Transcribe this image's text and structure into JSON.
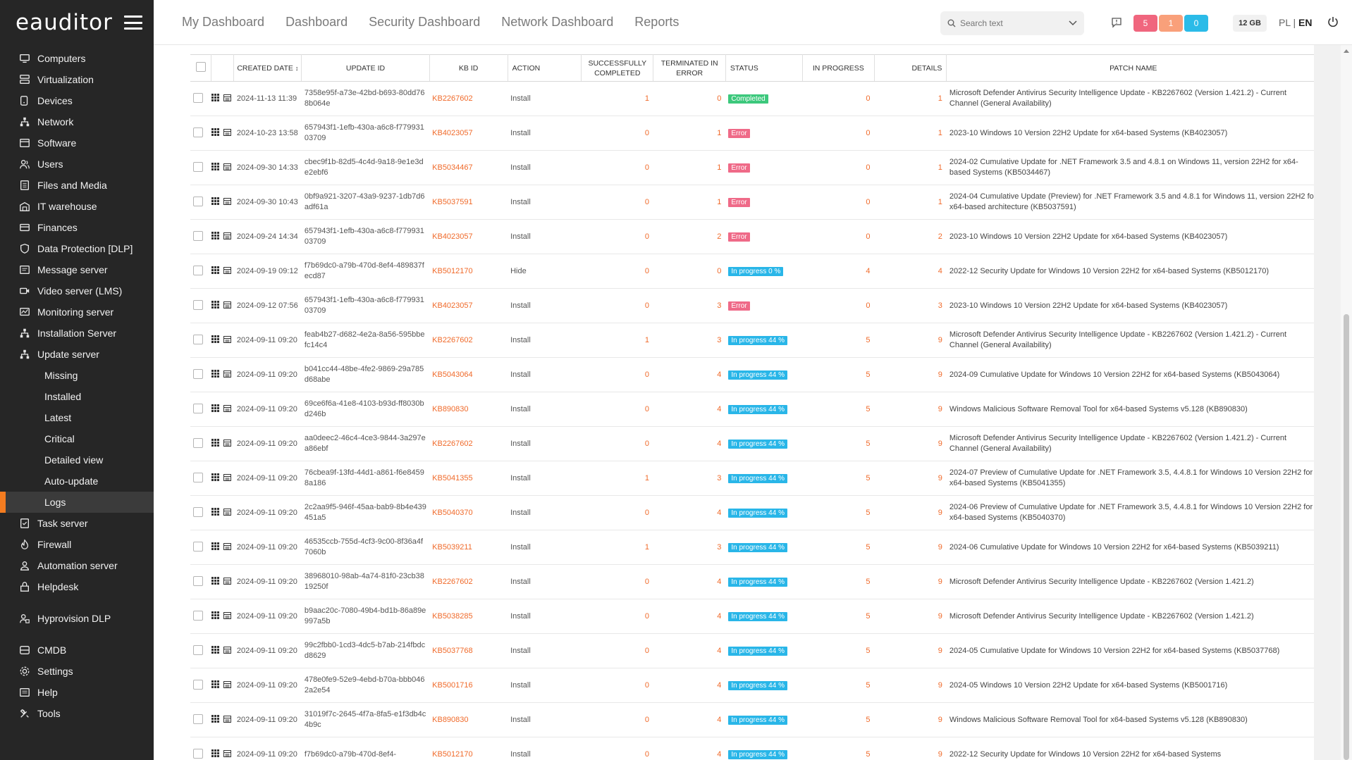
{
  "app": {
    "logo": "eauditor"
  },
  "sidebar": {
    "items": [
      {
        "label": "Computers",
        "icon": "computer-icon"
      },
      {
        "label": "Virtualization",
        "icon": "server-icon"
      },
      {
        "label": "Devices",
        "icon": "devices-icon"
      },
      {
        "label": "Network",
        "icon": "network-icon"
      },
      {
        "label": "Software",
        "icon": "software-icon"
      },
      {
        "label": "Users",
        "icon": "users-icon"
      },
      {
        "label": "Files and Media",
        "icon": "files-icon"
      },
      {
        "label": "IT warehouse",
        "icon": "warehouse-icon"
      },
      {
        "label": "Finances",
        "icon": "finances-icon"
      },
      {
        "label": "Data Protection [DLP]",
        "icon": "shield-icon"
      },
      {
        "label": "Message server",
        "icon": "message-icon"
      },
      {
        "label": "Video server (LMS)",
        "icon": "video-icon"
      },
      {
        "label": "Monitoring server",
        "icon": "monitoring-icon"
      },
      {
        "label": "Installation Server",
        "icon": "installation-icon"
      },
      {
        "label": "Update server",
        "icon": "update-icon"
      }
    ],
    "update_sub": [
      "Missing",
      "Installed",
      "Latest",
      "Critical",
      "Detailed view",
      "Auto-update",
      "Logs"
    ],
    "items_after": [
      {
        "label": "Task server",
        "icon": "task-icon"
      },
      {
        "label": "Firewall",
        "icon": "firewall-icon"
      },
      {
        "label": "Automation server",
        "icon": "automation-icon"
      },
      {
        "label": "Helpdesk",
        "icon": "helpdesk-icon"
      }
    ],
    "hyprovision": {
      "label": "Hyprovision DLP",
      "icon": "hyprovision-icon"
    },
    "bottom": [
      {
        "label": "CMDB",
        "icon": "database-icon"
      },
      {
        "label": "Settings",
        "icon": "gear-icon"
      },
      {
        "label": "Help",
        "icon": "help-icon"
      },
      {
        "label": "Tools",
        "icon": "tools-icon"
      }
    ]
  },
  "topbar": {
    "tabs": [
      "My Dashboard",
      "Dashboard",
      "Security Dashboard",
      "Network Dashboard",
      "Reports"
    ],
    "search_placeholder": "Search text",
    "badges": [
      {
        "value": "5",
        "color": "#f0667e"
      },
      {
        "value": "1",
        "color": "#f9a07a"
      },
      {
        "value": "0",
        "color": "#2bbbe8"
      }
    ],
    "memory": "12 GB",
    "lang_pl": "PL",
    "lang_sep": " | ",
    "lang_en": "EN"
  },
  "table": {
    "headers": {
      "created": "CREATED DATE",
      "update_id": "UPDATE ID",
      "kb_id": "KB ID",
      "action": "ACTION",
      "success": "SUCCESSFULLY COMPLETED",
      "terminated": "TERMINATED IN ERROR",
      "status": "STATUS",
      "in_progress": "IN PROGRESS",
      "details": "DETAILS",
      "patch": "PATCH NAME"
    },
    "rows": [
      {
        "date": "2024-11-13 11:39",
        "uid": "7358e95f-a73e-42bd-b693-80dd768b064e",
        "kb": "KB2267602",
        "action": "Install",
        "ok": "1",
        "err": "0",
        "status": "Completed",
        "stype": "completed",
        "prog": "0",
        "details": "1",
        "patch": "Microsoft Defender Antivirus Security Intelligence Update - KB2267602 (Version 1.421.2) - Current Channel (General Availability)"
      },
      {
        "date": "2024-10-23 13:58",
        "uid": "657943f1-1efb-430a-a6c8-f77993103709",
        "kb": "KB4023057",
        "action": "Install",
        "ok": "0",
        "err": "1",
        "status": "Error",
        "stype": "error",
        "prog": "0",
        "details": "1",
        "patch": "2023-10 Windows 10 Version 22H2 Update for x64-based Systems (KB4023057)"
      },
      {
        "date": "2024-09-30 14:33",
        "uid": "cbec9f1b-82d5-4c4d-9a18-9e1e3de2ebf6",
        "kb": "KB5034467",
        "action": "Install",
        "ok": "0",
        "err": "1",
        "status": "Error",
        "stype": "error",
        "prog": "0",
        "details": "1",
        "patch": "2024-02 Cumulative Update for .NET Framework 3.5 and 4.8.1 on Windows 11, version 22H2 for x64-based Systems (KB5034467)"
      },
      {
        "date": "2024-09-30 10:43",
        "uid": "0bf9a921-3207-43a9-9237-1db7d6adf61a",
        "kb": "KB5037591",
        "action": "Install",
        "ok": "0",
        "err": "1",
        "status": "Error",
        "stype": "error",
        "prog": "0",
        "details": "1",
        "patch": "2024-04 Cumulative Update (Preview) for .NET Framework 3.5 and 4.8.1 for Windows 11, version 22H2 for x64-based architecture (KB5037591)"
      },
      {
        "date": "2024-09-24 14:34",
        "uid": "657943f1-1efb-430a-a6c8-f77993103709",
        "kb": "KB4023057",
        "action": "Install",
        "ok": "0",
        "err": "2",
        "status": "Error",
        "stype": "error",
        "prog": "0",
        "details": "2",
        "patch": "2023-10 Windows 10 Version 22H2 Update for x64-based Systems (KB4023057)"
      },
      {
        "date": "2024-09-19 09:12",
        "uid": "f7b69dc0-a79b-470d-8ef4-489837fecd87",
        "kb": "KB5012170",
        "action": "Hide",
        "ok": "0",
        "err": "0",
        "status": "In progress 0 %",
        "stype": "progress",
        "prog": "4",
        "details": "4",
        "patch": "2022-12 Security Update for Windows 10 Version 22H2 for x64-based Systems (KB5012170)"
      },
      {
        "date": "2024-09-12 07:56",
        "uid": "657943f1-1efb-430a-a6c8-f77993103709",
        "kb": "KB4023057",
        "action": "Install",
        "ok": "0",
        "err": "3",
        "status": "Error",
        "stype": "error",
        "prog": "0",
        "details": "3",
        "patch": "2023-10 Windows 10 Version 22H2 Update for x64-based Systems (KB4023057)"
      },
      {
        "date": "2024-09-11 09:20",
        "uid": "feab4b27-d682-4e2a-8a56-595bbefc14c4",
        "kb": "KB2267602",
        "action": "Install",
        "ok": "1",
        "err": "3",
        "status": "In progress 44 %",
        "stype": "progress",
        "prog": "5",
        "details": "9",
        "patch": "Microsoft Defender Antivirus Security Intelligence Update - KB2267602 (Version 1.421.2) - Current Channel (General Availability)"
      },
      {
        "date": "2024-09-11 09:20",
        "uid": "b041cc44-48be-4fe2-9869-29a785d68abe",
        "kb": "KB5043064",
        "action": "Install",
        "ok": "0",
        "err": "4",
        "status": "In progress 44 %",
        "stype": "progress",
        "prog": "5",
        "details": "9",
        "patch": "2024-09 Cumulative Update for Windows 10 Version 22H2 for x64-based Systems (KB5043064)"
      },
      {
        "date": "2024-09-11 09:20",
        "uid": "69ce6f6a-41e8-4103-b93d-ff8030bd246b",
        "kb": "KB890830",
        "action": "Install",
        "ok": "0",
        "err": "4",
        "status": "In progress 44 %",
        "stype": "progress",
        "prog": "5",
        "details": "9",
        "patch": "Windows Malicious Software Removal Tool for x64-based Systems v5.128 (KB890830)"
      },
      {
        "date": "2024-09-11 09:20",
        "uid": "aa0deec2-46c4-4ce3-9844-3a297ea86ebf",
        "kb": "KB2267602",
        "action": "Install",
        "ok": "0",
        "err": "4",
        "status": "In progress 44 %",
        "stype": "progress",
        "prog": "5",
        "details": "9",
        "patch": "Microsoft Defender Antivirus Security Intelligence Update - KB2267602 (Version 1.421.2) - Current Channel (General Availability)"
      },
      {
        "date": "2024-09-11 09:20",
        "uid": "76cbea9f-13fd-44d1-a861-f6e84598a186",
        "kb": "KB5041355",
        "action": "Install",
        "ok": "1",
        "err": "3",
        "status": "In progress 44 %",
        "stype": "progress",
        "prog": "5",
        "details": "9",
        "patch": "2024-07 Preview of Cumulative Update for .NET Framework 3.5, 4.4.8.1 for Windows 10 Version 22H2 for x64-based Systems (KB5041355)"
      },
      {
        "date": "2024-09-11 09:20",
        "uid": "2c2aa9f5-946f-45aa-bab9-8b4e439451a5",
        "kb": "KB5040370",
        "action": "Install",
        "ok": "0",
        "err": "4",
        "status": "In progress 44 %",
        "stype": "progress",
        "prog": "5",
        "details": "9",
        "patch": "2024-06 Preview of Cumulative Update for .NET Framework 3.5, 4.4.8.1 for Windows 10 Version 22H2 for x64-based Systems (KB5040370)"
      },
      {
        "date": "2024-09-11 09:20",
        "uid": "46535ccb-755d-4cf3-9c00-8f36a4f7060b",
        "kb": "KB5039211",
        "action": "Install",
        "ok": "1",
        "err": "3",
        "status": "In progress 44 %",
        "stype": "progress",
        "prog": "5",
        "details": "9",
        "patch": "2024-06 Cumulative Update for Windows 10 Version 22H2 for x64-based Systems (KB5039211)"
      },
      {
        "date": "2024-09-11 09:20",
        "uid": "38968010-98ab-4a74-81f0-23cb3819250f",
        "kb": "KB2267602",
        "action": "Install",
        "ok": "0",
        "err": "4",
        "status": "In progress 44 %",
        "stype": "progress",
        "prog": "5",
        "details": "9",
        "patch": "Microsoft Defender Antivirus Security Intelligence Update - KB2267602 (Version 1.421.2)"
      },
      {
        "date": "2024-09-11 09:20",
        "uid": "b9aac20c-7080-49b4-bd1b-86a89e997a5b",
        "kb": "KB5038285",
        "action": "Install",
        "ok": "0",
        "err": "4",
        "status": "In progress 44 %",
        "stype": "progress",
        "prog": "5",
        "details": "9",
        "patch": "Microsoft Defender Antivirus Security Intelligence Update - KB2267602 (Version 1.421.2)"
      },
      {
        "date": "2024-09-11 09:20",
        "uid": "99c2fbb0-1cd3-4dc5-b7ab-214fbdcd8629",
        "kb": "KB5037768",
        "action": "Install",
        "ok": "0",
        "err": "4",
        "status": "In progress 44 %",
        "stype": "progress",
        "prog": "5",
        "details": "9",
        "patch": "2024-05 Cumulative Update for Windows 10 Version 22H2 for x64-based Systems (KB5037768)"
      },
      {
        "date": "2024-09-11 09:20",
        "uid": "478e0fe9-52e9-4ebd-b70a-bbb0462a2e54",
        "kb": "KB5001716",
        "action": "Install",
        "ok": "0",
        "err": "4",
        "status": "In progress 44 %",
        "stype": "progress",
        "prog": "5",
        "details": "9",
        "patch": "2024-05 Windows 10 Version 22H2 Update for x64-based Systems (KB5001716)"
      },
      {
        "date": "2024-09-11 09:20",
        "uid": "31019f7c-2645-4f7a-8fa5-e1f3db4c4b9c",
        "kb": "KB890830",
        "action": "Install",
        "ok": "0",
        "err": "4",
        "status": "In progress 44 %",
        "stype": "progress",
        "prog": "5",
        "details": "9",
        "patch": "Windows Malicious Software Removal Tool for x64-based Systems v5.128 (KB890830)"
      },
      {
        "date": "2024-09-11 09:20",
        "uid": "f7b69dc0-a79b-470d-8ef4-",
        "kb": "KB5012170",
        "action": "Install",
        "ok": "0",
        "err": "4",
        "status": "In progress 44 %",
        "stype": "progress",
        "prog": "5",
        "details": "9",
        "patch": "2022-12 Security Update for Windows 10 Version 22H2 for x64-based Systems"
      }
    ]
  }
}
